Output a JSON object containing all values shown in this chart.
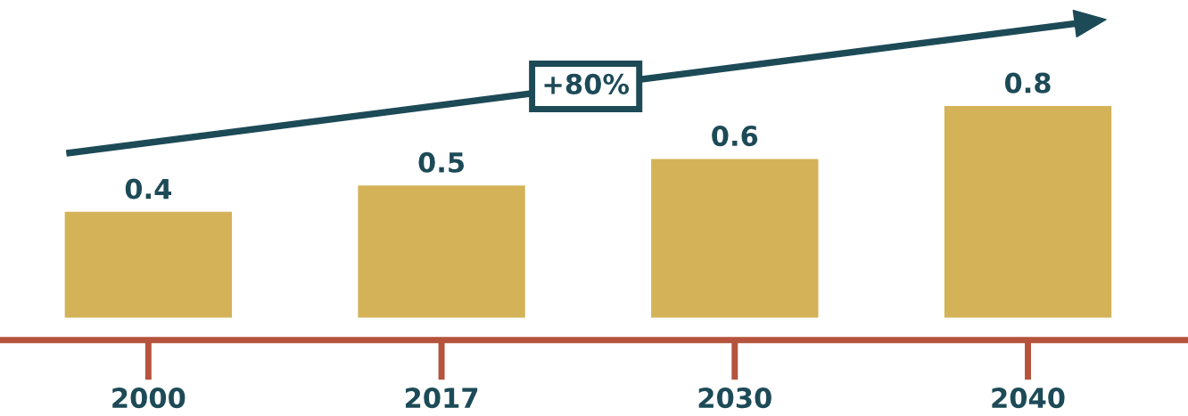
{
  "chart_data": {
    "type": "bar",
    "categories": [
      "2000",
      "2017",
      "2030",
      "2040"
    ],
    "values": [
      0.4,
      0.5,
      0.6,
      0.8
    ],
    "color": "#d4b257",
    "data_labels": true,
    "annotations": [
      "+80%"
    ],
    "grid": false,
    "legend": false
  }
}
